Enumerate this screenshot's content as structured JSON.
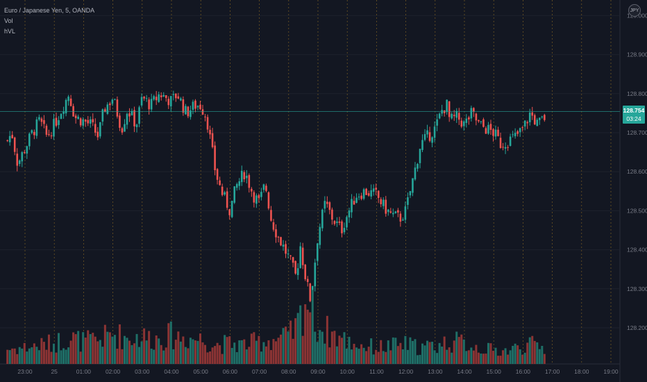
{
  "legend": {
    "symbol_line": "Euro / Japanese Yen, 5, OANDA",
    "vol": "Vol",
    "hvl": "hVL"
  },
  "currency_badge": "JPY",
  "last_price": {
    "price": "128.754",
    "countdown": "03:24"
  },
  "colors": {
    "background": "#131722",
    "up": "#26a69a",
    "down": "#ef5350",
    "up_volume": "#1f6f67",
    "down_volume": "#8c3434",
    "grid": "#1e222d",
    "session_line": "#a67b22",
    "axis_text": "#787b86",
    "last_price_line": "#26a69a"
  },
  "chart_data": {
    "type": "candlestick",
    "symbol": "EURJPY",
    "interval": "5",
    "source": "OANDA",
    "y_axis": {
      "range": [
        128.12,
        129.0
      ],
      "ticks": [
        "128.200",
        "128.300",
        "128.400",
        "128.500",
        "128.600",
        "128.700",
        "128.800",
        "128.900",
        "129.000"
      ]
    },
    "x_axis": {
      "labels": [
        "23:00",
        "25",
        "01:00",
        "02:00",
        "03:00",
        "04:00",
        "05:00",
        "06:00",
        "07:00",
        "08:00",
        "09:00",
        "10:00",
        "11:00",
        "12:00",
        "13:00",
        "14:00",
        "15:00",
        "16:00",
        "17:00",
        "18:00",
        "19:00"
      ]
    },
    "close_path": [
      [
        22.4,
        128.68
      ],
      [
        22.55,
        128.7
      ],
      [
        22.75,
        128.62
      ],
      [
        23.0,
        128.66
      ],
      [
        23.25,
        128.7
      ],
      [
        23.5,
        128.73
      ],
      [
        23.75,
        128.69
      ],
      [
        24.0,
        128.72
      ],
      [
        24.25,
        128.76
      ],
      [
        24.5,
        128.8
      ],
      [
        24.7,
        128.74
      ],
      [
        25.0,
        128.73
      ],
      [
        25.25,
        128.72
      ],
      [
        25.5,
        128.69
      ],
      [
        25.7,
        128.76
      ],
      [
        26.0,
        128.79
      ],
      [
        26.3,
        128.71
      ],
      [
        26.5,
        128.76
      ],
      [
        26.8,
        128.72
      ],
      [
        27.0,
        128.79
      ],
      [
        27.3,
        128.77
      ],
      [
        27.6,
        128.8
      ],
      [
        28.0,
        128.78
      ],
      [
        28.2,
        128.8
      ],
      [
        28.5,
        128.75
      ],
      [
        28.8,
        128.77
      ],
      [
        29.0,
        128.77
      ],
      [
        29.2,
        128.74
      ],
      [
        29.5,
        128.6
      ],
      [
        29.7,
        128.55
      ],
      [
        30.0,
        128.5
      ],
      [
        30.2,
        128.56
      ],
      [
        30.5,
        128.6
      ],
      [
        30.8,
        128.54
      ],
      [
        31.0,
        128.52
      ],
      [
        31.2,
        128.57
      ],
      [
        31.4,
        128.48
      ],
      [
        31.6,
        128.44
      ],
      [
        32.0,
        128.38
      ],
      [
        32.25,
        128.33
      ],
      [
        32.4,
        128.41
      ],
      [
        32.6,
        128.32
      ],
      [
        32.75,
        128.27
      ],
      [
        33.0,
        128.44
      ],
      [
        33.25,
        128.52
      ],
      [
        33.5,
        128.48
      ],
      [
        33.8,
        128.45
      ],
      [
        34.0,
        128.49
      ],
      [
        34.3,
        128.54
      ],
      [
        34.6,
        128.55
      ],
      [
        35.0,
        128.54
      ],
      [
        35.25,
        128.51
      ],
      [
        35.5,
        128.49
      ],
      [
        35.8,
        128.48
      ],
      [
        36.0,
        128.5
      ],
      [
        36.3,
        128.6
      ],
      [
        36.5,
        128.67
      ],
      [
        36.75,
        128.69
      ],
      [
        37.0,
        128.71
      ],
      [
        37.25,
        128.76
      ],
      [
        37.4,
        128.77
      ],
      [
        37.5,
        128.73
      ],
      [
        37.75,
        128.74
      ],
      [
        38.0,
        128.72
      ],
      [
        38.25,
        128.75
      ],
      [
        38.5,
        128.72
      ],
      [
        38.75,
        128.71
      ],
      [
        39.0,
        128.7
      ],
      [
        39.25,
        128.67
      ],
      [
        39.5,
        128.68
      ],
      [
        39.75,
        128.69
      ],
      [
        40.0,
        128.71
      ],
      [
        40.25,
        128.75
      ],
      [
        40.5,
        128.72
      ],
      [
        40.75,
        128.74
      ]
    ],
    "volume_path": [
      [
        22.4,
        0.2
      ],
      [
        23.0,
        0.22
      ],
      [
        23.5,
        0.25
      ],
      [
        24.0,
        0.28
      ],
      [
        24.5,
        0.35
      ],
      [
        25.0,
        0.3
      ],
      [
        25.5,
        0.32
      ],
      [
        26.0,
        0.4
      ],
      [
        26.5,
        0.35
      ],
      [
        27.0,
        0.36
      ],
      [
        27.5,
        0.34
      ],
      [
        28.0,
        0.38
      ],
      [
        28.5,
        0.35
      ],
      [
        29.0,
        0.33
      ],
      [
        29.5,
        0.26
      ],
      [
        30.0,
        0.27
      ],
      [
        30.5,
        0.26
      ],
      [
        31.0,
        0.3
      ],
      [
        31.5,
        0.33
      ],
      [
        32.0,
        0.36
      ],
      [
        32.3,
        0.5
      ],
      [
        32.6,
        0.9
      ],
      [
        32.8,
        0.7
      ],
      [
        33.0,
        0.5
      ],
      [
        33.5,
        0.4
      ],
      [
        34.0,
        0.3
      ],
      [
        34.5,
        0.25
      ],
      [
        35.0,
        0.22
      ],
      [
        35.5,
        0.24
      ],
      [
        36.0,
        0.26
      ],
      [
        36.5,
        0.22
      ],
      [
        37.0,
        0.24
      ],
      [
        37.5,
        0.3
      ],
      [
        38.0,
        0.28
      ],
      [
        38.5,
        0.22
      ],
      [
        39.0,
        0.18
      ],
      [
        39.5,
        0.18
      ],
      [
        40.0,
        0.24
      ],
      [
        40.5,
        0.26
      ],
      [
        40.75,
        0.2
      ]
    ],
    "last_price": 128.754
  }
}
